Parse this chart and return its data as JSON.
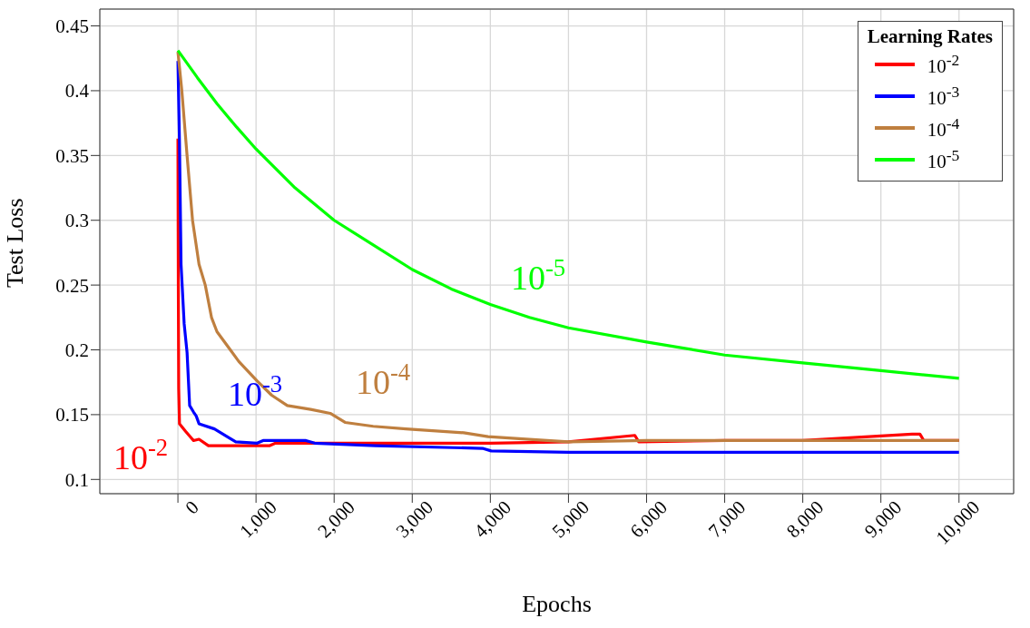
{
  "chart_data": {
    "type": "line",
    "xlabel": "Epochs",
    "ylabel": "Test Loss",
    "legend_title": "Learning Rates",
    "xlim": [
      -1000,
      10700
    ],
    "ylim": [
      0.089,
      0.463
    ],
    "xticks": [
      {
        "value": 0,
        "label": "0"
      },
      {
        "value": 1000,
        "label": "1,000"
      },
      {
        "value": 2000,
        "label": "2,000"
      },
      {
        "value": 3000,
        "label": "3,000"
      },
      {
        "value": 4000,
        "label": "4,000"
      },
      {
        "value": 5000,
        "label": "5,000"
      },
      {
        "value": 6000,
        "label": "6,000"
      },
      {
        "value": 7000,
        "label": "7,000"
      },
      {
        "value": 8000,
        "label": "8,000"
      },
      {
        "value": 9000,
        "label": "9,000"
      },
      {
        "value": 10000,
        "label": "10,000"
      }
    ],
    "yticks": [
      0.1,
      0.15,
      0.2,
      0.25,
      0.3,
      0.35,
      0.4,
      0.45
    ],
    "grid": true,
    "legend": "top right",
    "marker": "none",
    "line_style": "solid",
    "series": [
      {
        "name": "10$^{-2}$",
        "color": "#ff0000",
        "x": [
          0,
          5,
          10,
          20,
          100,
          200,
          270,
          390,
          1170,
          1250,
          2000,
          3000,
          4000,
          5000,
          5850,
          5900,
          7000,
          8000,
          9400,
          9500,
          9550,
          10000
        ],
        "values": [
          0.363,
          0.25,
          0.17,
          0.143,
          0.137,
          0.13,
          0.131,
          0.126,
          0.126,
          0.128,
          0.128,
          0.128,
          0.128,
          0.129,
          0.134,
          0.129,
          0.13,
          0.13,
          0.135,
          0.135,
          0.13,
          0.13
        ]
      },
      {
        "name": "10$^{-3}$",
        "color": "#0000ff",
        "x": [
          0,
          20,
          40,
          80,
          117,
          150,
          200,
          234,
          270,
          467,
          740,
          1015,
          1090,
          1640,
          1750,
          2530,
          3900,
          4010,
          5000,
          10000
        ],
        "values": [
          0.423,
          0.36,
          0.266,
          0.22,
          0.198,
          0.157,
          0.152,
          0.149,
          0.143,
          0.139,
          0.129,
          0.128,
          0.13,
          0.13,
          0.128,
          0.126,
          0.124,
          0.122,
          0.121,
          0.121
        ]
      },
      {
        "name": "10$^{-4}$",
        "color": "#bf7f3f",
        "x": [
          0,
          50,
          117,
          187,
          270,
          350,
          430,
          500,
          780,
          1015,
          1200,
          1400,
          1700,
          1950,
          2140,
          2500,
          2920,
          3660,
          3970,
          4500,
          5000,
          6000,
          7000,
          8000,
          9000,
          10000
        ],
        "values": [
          0.43,
          0.4,
          0.35,
          0.3,
          0.266,
          0.25,
          0.225,
          0.214,
          0.191,
          0.176,
          0.165,
          0.157,
          0.154,
          0.151,
          0.144,
          0.141,
          0.139,
          0.136,
          0.133,
          0.131,
          0.129,
          0.13,
          0.13,
          0.13,
          0.13,
          0.13
        ]
      },
      {
        "name": "10$^{-5}$",
        "color": "#00ff00",
        "x": [
          0,
          250,
          500,
          750,
          1000,
          1500,
          2000,
          2500,
          3000,
          3500,
          4000,
          4500,
          5000,
          6000,
          7000,
          8000,
          9000,
          10000
        ],
        "values": [
          0.431,
          0.41,
          0.39,
          0.372,
          0.355,
          0.325,
          0.3,
          0.281,
          0.262,
          0.247,
          0.235,
          0.225,
          0.217,
          0.206,
          0.196,
          0.19,
          0.184,
          0.178
        ]
      }
    ],
    "annotations": [
      "10$^{-2}$",
      "10$^{-3}$",
      "10$^{-4}$",
      "10$^{-5}$"
    ]
  }
}
